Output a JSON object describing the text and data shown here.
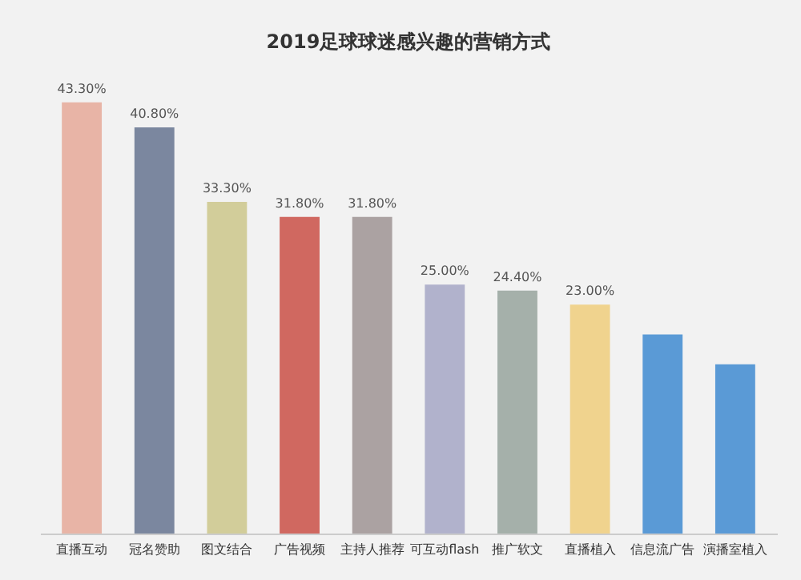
{
  "chart_data": {
    "type": "bar",
    "title": "2019足球球迷感兴趣的营销方式",
    "categories": [
      "直播互动",
      "冠名赞助",
      "图文结合",
      "广告视频",
      "主持人推荐",
      "可互动flash",
      "推广软文",
      "直播植入",
      "信息流广告",
      "演播室植入"
    ],
    "values": [
      43.3,
      40.8,
      33.3,
      31.8,
      31.8,
      25.0,
      24.4,
      23.0,
      20.0,
      17.0
    ],
    "value_labels": [
      "43.30%",
      "40.80%",
      "33.30%",
      "31.80%",
      "31.80%",
      "25.00%",
      "24.40%",
      "23.00%",
      null,
      null
    ],
    "colors": [
      "#e8b4a6",
      "#7b879f",
      "#d2cd9a",
      "#d06860",
      "#aba2a2",
      "#b1b2cc",
      "#a5b0aa",
      "#f0d38e",
      "#5a9ad6",
      "#5a9ad6"
    ]
  }
}
